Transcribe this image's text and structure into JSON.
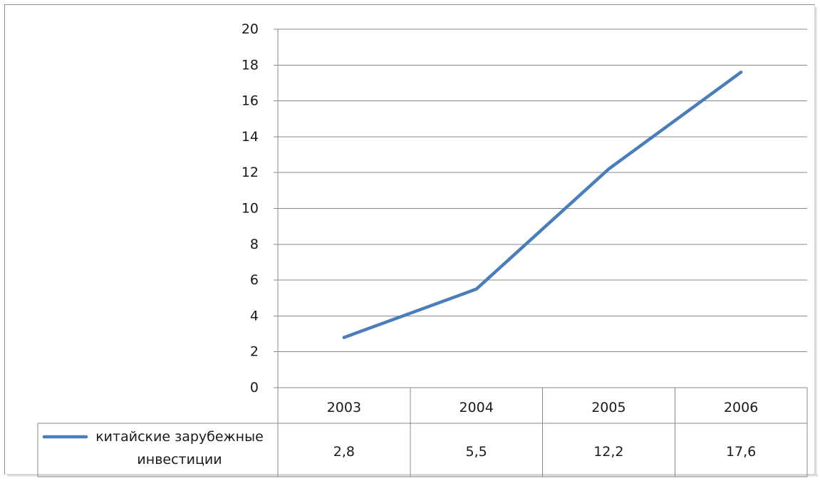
{
  "chart_data": {
    "type": "line",
    "title": "",
    "xlabel": "",
    "ylabel": "",
    "categories": [
      "2003",
      "2004",
      "2005",
      "2006"
    ],
    "series": [
      {
        "name": "китайские зарубежные инвестиции",
        "name_lines": [
          "китайские зарубежные",
          "инвестиции"
        ],
        "values": [
          2.8,
          5.5,
          12.2,
          17.6
        ],
        "labels": [
          "2,8",
          "5,5",
          "12,2",
          "17,6"
        ],
        "color": "#4a7ebb"
      }
    ],
    "ylim": [
      0,
      20
    ],
    "yticks": [
      0,
      2,
      4,
      6,
      8,
      10,
      12,
      14,
      16,
      18,
      20
    ],
    "grid": true,
    "legend": "data-table-left"
  }
}
